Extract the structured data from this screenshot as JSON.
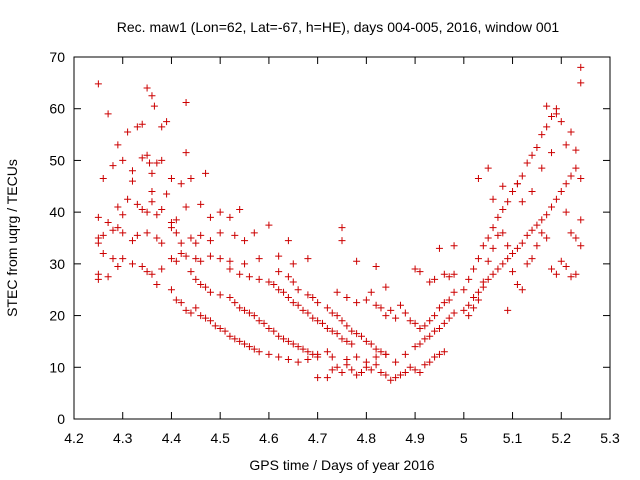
{
  "chart_data": {
    "type": "scatter",
    "title": "Rec. maw1 (Lon=62, Lat=-67, h=HE), days 004-005, 2016, window 001",
    "xlabel": "GPS time / Days of year 2016",
    "ylabel": "STEC from uqrg / TECUs",
    "xlim": [
      4.2,
      5.3
    ],
    "ylim": [
      0,
      70
    ],
    "xticks": [
      "4.2",
      "4.3",
      "4.4",
      "4.5",
      "4.6",
      "4.7",
      "4.8",
      "4.9",
      "5",
      "5.1",
      "5.2",
      "5.3"
    ],
    "yticks": [
      "0",
      "10",
      "20",
      "30",
      "40",
      "50",
      "60",
      "70"
    ],
    "marker": "+",
    "color": "#cc0000",
    "points": [
      [
        4.25,
        64.8
      ],
      [
        4.27,
        59.0
      ],
      [
        4.29,
        53.0
      ],
      [
        4.31,
        55.5
      ],
      [
        4.33,
        56.5
      ],
      [
        4.34,
        57.0
      ],
      [
        4.35,
        64.0
      ],
      [
        4.36,
        62.5
      ],
      [
        4.365,
        60.5
      ],
      [
        4.38,
        56.5
      ],
      [
        4.39,
        57.5
      ],
      [
        4.43,
        61.2
      ],
      [
        4.43,
        51.5
      ],
      [
        4.26,
        46.5
      ],
      [
        4.28,
        49.0
      ],
      [
        4.3,
        50.0
      ],
      [
        4.32,
        48.0
      ],
      [
        4.32,
        46.0
      ],
      [
        4.34,
        50.5
      ],
      [
        4.35,
        51.0
      ],
      [
        4.355,
        49.5
      ],
      [
        4.36,
        47.5
      ],
      [
        4.37,
        49.5
      ],
      [
        4.38,
        50.0
      ],
      [
        4.4,
        46.5
      ],
      [
        4.42,
        45.5
      ],
      [
        4.44,
        46.5
      ],
      [
        4.47,
        47.5
      ],
      [
        4.36,
        44.0
      ],
      [
        4.39,
        43.5
      ],
      [
        4.25,
        39.0
      ],
      [
        4.27,
        38.0
      ],
      [
        4.29,
        41.0
      ],
      [
        4.3,
        39.5
      ],
      [
        4.31,
        42.5
      ],
      [
        4.33,
        41.5
      ],
      [
        4.34,
        40.5
      ],
      [
        4.35,
        40.0
      ],
      [
        4.36,
        42.0
      ],
      [
        4.37,
        39.5
      ],
      [
        4.38,
        40.5
      ],
      [
        4.4,
        38.0
      ],
      [
        4.41,
        38.5
      ],
      [
        4.43,
        41.0
      ],
      [
        4.46,
        41.5
      ],
      [
        4.48,
        39.0
      ],
      [
        4.5,
        40.0
      ],
      [
        4.52,
        39.0
      ],
      [
        4.54,
        40.5
      ],
      [
        4.25,
        35.0
      ],
      [
        4.25,
        34.0
      ],
      [
        4.26,
        32.0
      ],
      [
        4.26,
        35.5
      ],
      [
        4.28,
        36.5
      ],
      [
        4.29,
        37.0
      ],
      [
        4.3,
        36.0
      ],
      [
        4.32,
        34.5
      ],
      [
        4.33,
        35.5
      ],
      [
        4.35,
        36.0
      ],
      [
        4.37,
        35.0
      ],
      [
        4.38,
        34.0
      ],
      [
        4.4,
        37.0
      ],
      [
        4.41,
        36.0
      ],
      [
        4.42,
        34.0
      ],
      [
        4.44,
        35.0
      ],
      [
        4.45,
        34.0
      ],
      [
        4.46,
        35.5
      ],
      [
        4.48,
        34.5
      ],
      [
        4.5,
        36.0
      ],
      [
        4.53,
        35.5
      ],
      [
        4.55,
        34.5
      ],
      [
        4.57,
        36.0
      ],
      [
        4.6,
        37.5
      ],
      [
        4.64,
        34.5
      ],
      [
        4.25,
        28.0
      ],
      [
        4.25,
        27.0
      ],
      [
        4.27,
        27.5
      ],
      [
        4.28,
        31.0
      ],
      [
        4.29,
        29.5
      ],
      [
        4.3,
        31.0
      ],
      [
        4.32,
        30.0
      ],
      [
        4.34,
        29.5
      ],
      [
        4.35,
        28.5
      ],
      [
        4.36,
        28.0
      ],
      [
        4.38,
        29.0
      ],
      [
        4.4,
        31.0
      ],
      [
        4.41,
        30.5
      ],
      [
        4.42,
        32.0
      ],
      [
        4.43,
        31.5
      ],
      [
        4.45,
        31.0
      ],
      [
        4.46,
        30.5
      ],
      [
        4.48,
        31.5
      ],
      [
        4.5,
        31.0
      ],
      [
        4.52,
        30.5
      ],
      [
        4.55,
        30.0
      ],
      [
        4.58,
        31.0
      ],
      [
        4.62,
        31.5
      ],
      [
        4.65,
        30.0
      ],
      [
        4.68,
        31.0
      ],
      [
        4.37,
        26.0
      ],
      [
        4.4,
        25.0
      ],
      [
        4.41,
        23.0
      ],
      [
        4.42,
        22.5
      ],
      [
        4.43,
        21.0
      ],
      [
        4.44,
        20.5
      ],
      [
        4.45,
        21.5
      ],
      [
        4.46,
        20.0
      ],
      [
        4.47,
        19.5
      ],
      [
        4.48,
        19.0
      ],
      [
        4.49,
        18.0
      ],
      [
        4.5,
        17.5
      ],
      [
        4.51,
        17.0
      ],
      [
        4.52,
        16.0
      ],
      [
        4.53,
        15.5
      ],
      [
        4.54,
        15.0
      ],
      [
        4.55,
        14.5
      ],
      [
        4.56,
        14.0
      ],
      [
        4.57,
        13.5
      ],
      [
        4.58,
        13.0
      ],
      [
        4.6,
        12.5
      ],
      [
        4.62,
        12.0
      ],
      [
        4.64,
        11.5
      ],
      [
        4.66,
        11.0
      ],
      [
        4.68,
        11.5
      ],
      [
        4.7,
        12.5
      ],
      [
        4.72,
        13.0
      ],
      [
        4.73,
        12.0
      ],
      [
        4.44,
        28.5
      ],
      [
        4.45,
        27.0
      ],
      [
        4.46,
        26.0
      ],
      [
        4.47,
        25.5
      ],
      [
        4.48,
        24.5
      ],
      [
        4.5,
        24.0
      ],
      [
        4.52,
        23.5
      ],
      [
        4.53,
        22.5
      ],
      [
        4.54,
        21.5
      ],
      [
        4.55,
        21.0
      ],
      [
        4.56,
        20.5
      ],
      [
        4.57,
        20.0
      ],
      [
        4.58,
        19.0
      ],
      [
        4.59,
        18.5
      ],
      [
        4.6,
        17.5
      ],
      [
        4.61,
        17.0
      ],
      [
        4.62,
        16.0
      ],
      [
        4.63,
        15.5
      ],
      [
        4.64,
        15.0
      ],
      [
        4.65,
        14.5
      ],
      [
        4.66,
        14.0
      ],
      [
        4.67,
        13.5
      ],
      [
        4.68,
        13.0
      ],
      [
        4.69,
        12.5
      ],
      [
        4.7,
        12.0
      ],
      [
        4.52,
        29.0
      ],
      [
        4.54,
        28.0
      ],
      [
        4.56,
        27.5
      ],
      [
        4.58,
        27.0
      ],
      [
        4.6,
        26.5
      ],
      [
        4.61,
        26.0
      ],
      [
        4.62,
        25.0
      ],
      [
        4.63,
        24.5
      ],
      [
        4.64,
        23.5
      ],
      [
        4.65,
        22.5
      ],
      [
        4.66,
        22.0
      ],
      [
        4.67,
        21.0
      ],
      [
        4.68,
        20.5
      ],
      [
        4.69,
        19.5
      ],
      [
        4.7,
        19.0
      ],
      [
        4.71,
        18.5
      ],
      [
        4.72,
        17.5
      ],
      [
        4.73,
        17.0
      ],
      [
        4.74,
        16.5
      ],
      [
        4.75,
        15.5
      ],
      [
        4.76,
        15.0
      ],
      [
        4.77,
        14.5
      ],
      [
        4.62,
        28.5
      ],
      [
        4.64,
        27.5
      ],
      [
        4.65,
        26.5
      ],
      [
        4.66,
        25.0
      ],
      [
        4.68,
        24.0
      ],
      [
        4.69,
        23.5
      ],
      [
        4.7,
        22.5
      ],
      [
        4.72,
        21.5
      ],
      [
        4.73,
        20.5
      ],
      [
        4.74,
        20.0
      ],
      [
        4.75,
        19.0
      ],
      [
        4.76,
        18.0
      ],
      [
        4.77,
        17.0
      ],
      [
        4.78,
        16.5
      ],
      [
        4.79,
        16.0
      ],
      [
        4.8,
        15.0
      ],
      [
        4.81,
        14.5
      ],
      [
        4.82,
        13.5
      ],
      [
        4.83,
        13.0
      ],
      [
        4.84,
        12.5
      ],
      [
        4.7,
        8.0
      ],
      [
        4.72,
        8.0
      ],
      [
        4.73,
        9.5
      ],
      [
        4.74,
        10.0
      ],
      [
        4.75,
        9.0
      ],
      [
        4.76,
        10.5
      ],
      [
        4.77,
        9.5
      ],
      [
        4.78,
        8.5
      ],
      [
        4.79,
        9.0
      ],
      [
        4.8,
        10.0
      ],
      [
        4.81,
        9.5
      ],
      [
        4.82,
        10.5
      ],
      [
        4.83,
        9.0
      ],
      [
        4.84,
        8.5
      ],
      [
        4.85,
        7.5
      ],
      [
        4.86,
        8.0
      ],
      [
        4.87,
        8.5
      ],
      [
        4.88,
        9.0
      ],
      [
        4.89,
        10.0
      ],
      [
        4.9,
        9.5
      ],
      [
        4.91,
        9.0
      ],
      [
        4.92,
        10.5
      ],
      [
        4.93,
        11.0
      ],
      [
        4.94,
        12.0
      ],
      [
        4.95,
        12.5
      ],
      [
        4.96,
        13.0
      ],
      [
        4.76,
        11.5
      ],
      [
        4.78,
        12.0
      ],
      [
        4.8,
        11.0
      ],
      [
        4.82,
        12.0
      ],
      [
        4.84,
        12.5
      ],
      [
        4.86,
        11.0
      ],
      [
        4.88,
        12.5
      ],
      [
        4.9,
        14.0
      ],
      [
        4.91,
        14.5
      ],
      [
        4.92,
        15.5
      ],
      [
        4.93,
        16.0
      ],
      [
        4.94,
        17.0
      ],
      [
        4.95,
        17.5
      ],
      [
        4.96,
        18.5
      ],
      [
        4.97,
        19.5
      ],
      [
        4.98,
        20.5
      ],
      [
        4.74,
        24.5
      ],
      [
        4.76,
        23.5
      ],
      [
        4.78,
        22.5
      ],
      [
        4.8,
        23.0
      ],
      [
        4.81,
        24.5
      ],
      [
        4.82,
        22.0
      ],
      [
        4.83,
        21.5
      ],
      [
        4.84,
        20.0
      ],
      [
        4.85,
        21.0
      ],
      [
        4.86,
        19.5
      ],
      [
        4.87,
        22.0
      ],
      [
        4.88,
        20.5
      ],
      [
        4.89,
        19.0
      ],
      [
        4.9,
        18.5
      ],
      [
        4.91,
        17.5
      ],
      [
        4.92,
        18.0
      ],
      [
        4.93,
        19.0
      ],
      [
        4.94,
        20.0
      ],
      [
        4.95,
        21.5
      ],
      [
        4.96,
        22.5
      ],
      [
        4.97,
        23.0
      ],
      [
        4.98,
        24.5
      ],
      [
        4.75,
        37.0
      ],
      [
        4.75,
        34.5
      ],
      [
        4.78,
        30.5
      ],
      [
        4.82,
        29.5
      ],
      [
        4.84,
        25.5
      ],
      [
        4.9,
        29.0
      ],
      [
        4.91,
        28.5
      ],
      [
        4.93,
        26.5
      ],
      [
        4.94,
        27.0
      ],
      [
        4.95,
        33.0
      ],
      [
        4.96,
        28.0
      ],
      [
        4.97,
        27.5
      ],
      [
        4.98,
        28.0
      ],
      [
        4.98,
        33.5
      ],
      [
        5.0,
        21.0
      ],
      [
        5.01,
        22.0
      ],
      [
        5.02,
        23.5
      ],
      [
        5.03,
        24.5
      ],
      [
        5.04,
        25.5
      ],
      [
        5.05,
        27.0
      ],
      [
        5.06,
        28.0
      ],
      [
        5.07,
        29.0
      ],
      [
        5.08,
        30.0
      ],
      [
        5.09,
        31.0
      ],
      [
        5.1,
        32.0
      ],
      [
        5.11,
        33.0
      ],
      [
        5.12,
        34.0
      ],
      [
        5.13,
        35.5
      ],
      [
        5.14,
        36.5
      ],
      [
        5.15,
        37.5
      ],
      [
        5.16,
        38.5
      ],
      [
        5.17,
        39.5
      ],
      [
        5.18,
        41.0
      ],
      [
        5.19,
        42.5
      ],
      [
        5.2,
        44.0
      ],
      [
        5.21,
        45.5
      ],
      [
        5.22,
        47.0
      ],
      [
        5.23,
        48.5
      ],
      [
        5.24,
        46.5
      ],
      [
        5.0,
        25.0
      ],
      [
        5.01,
        27.0
      ],
      [
        5.02,
        29.0
      ],
      [
        5.03,
        31.0
      ],
      [
        5.04,
        33.5
      ],
      [
        5.05,
        35.0
      ],
      [
        5.06,
        37.0
      ],
      [
        5.07,
        39.0
      ],
      [
        5.08,
        40.5
      ],
      [
        5.09,
        42.0
      ],
      [
        5.1,
        44.0
      ],
      [
        5.11,
        45.5
      ],
      [
        5.12,
        47.0
      ],
      [
        5.13,
        49.5
      ],
      [
        5.14,
        51.0
      ],
      [
        5.15,
        52.5
      ],
      [
        5.16,
        55.0
      ],
      [
        5.17,
        56.5
      ],
      [
        5.18,
        58.5
      ],
      [
        5.19,
        60.0
      ],
      [
        5.2,
        57.5
      ],
      [
        5.21,
        53.0
      ],
      [
        5.22,
        55.5
      ],
      [
        5.23,
        52.0
      ],
      [
        5.01,
        20.0
      ],
      [
        5.02,
        21.5
      ],
      [
        5.03,
        23.0
      ],
      [
        5.04,
        26.5
      ],
      [
        5.05,
        30.5
      ],
      [
        5.06,
        33.0
      ],
      [
        5.07,
        35.5
      ],
      [
        5.08,
        36.0
      ],
      [
        5.09,
        33.5
      ],
      [
        5.1,
        28.5
      ],
      [
        5.11,
        26.0
      ],
      [
        5.12,
        25.0
      ],
      [
        5.13,
        30.0
      ],
      [
        5.14,
        31.0
      ],
      [
        5.15,
        33.5
      ],
      [
        5.16,
        36.0
      ],
      [
        5.17,
        35.0
      ],
      [
        5.18,
        29.0
      ],
      [
        5.19,
        28.0
      ],
      [
        5.2,
        30.5
      ],
      [
        5.21,
        29.5
      ],
      [
        5.22,
        27.5
      ],
      [
        5.23,
        28.0
      ],
      [
        5.24,
        33.5
      ],
      [
        5.03,
        46.5
      ],
      [
        5.05,
        48.5
      ],
      [
        5.06,
        42.5
      ],
      [
        5.08,
        45.0
      ],
      [
        5.09,
        21.0
      ],
      [
        5.11,
        45.5
      ],
      [
        5.12,
        42.0
      ],
      [
        5.14,
        44.0
      ],
      [
        5.16,
        48.5
      ],
      [
        5.17,
        60.5
      ],
      [
        5.18,
        51.5
      ],
      [
        5.19,
        59.0
      ],
      [
        5.21,
        40.0
      ],
      [
        5.22,
        36.0
      ],
      [
        5.23,
        35.0
      ],
      [
        5.24,
        38.5
      ],
      [
        5.24,
        65.0
      ],
      [
        5.24,
        68.0
      ]
    ]
  }
}
